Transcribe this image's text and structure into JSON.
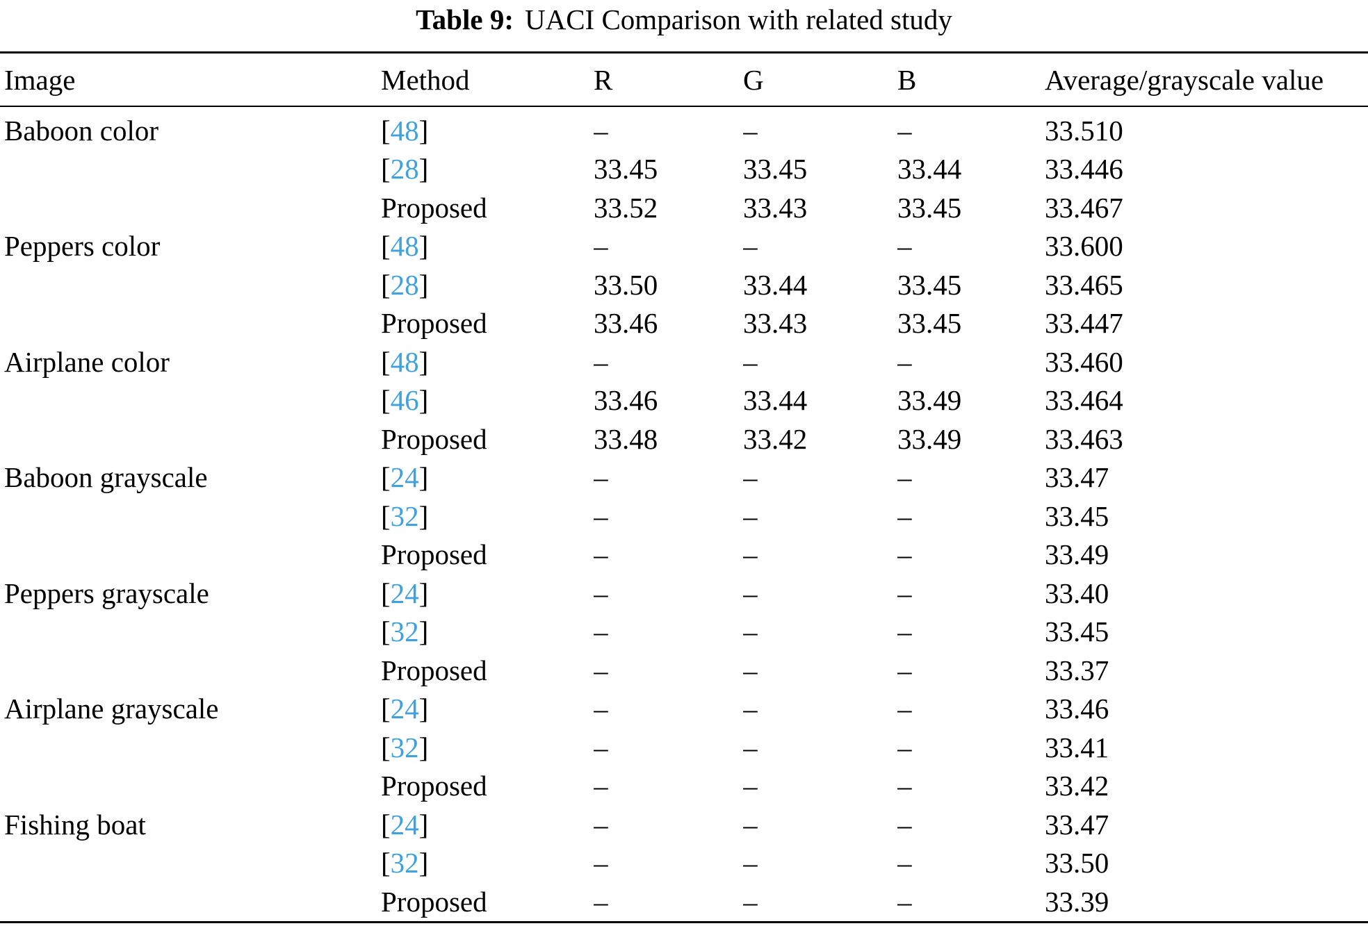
{
  "caption": {
    "label": "Table 9:",
    "text": "UACI Comparison with related study"
  },
  "columns": [
    "Image",
    "Method",
    "R",
    "G",
    "B",
    "Average/grayscale value"
  ],
  "colors": {
    "citation": "#3fa2dc",
    "text": "#000000",
    "rule": "#000000"
  },
  "dash": "–",
  "rows": [
    {
      "image": "Baboon color",
      "method": {
        "ref": "48"
      },
      "r": "–",
      "g": "–",
      "b": "–",
      "avg": "33.510"
    },
    {
      "image": "",
      "method": {
        "ref": "28"
      },
      "r": "33.45",
      "g": "33.45",
      "b": "33.44",
      "avg": "33.446"
    },
    {
      "image": "",
      "method": {
        "label": "Proposed"
      },
      "r": "33.52",
      "g": "33.43",
      "b": "33.45",
      "avg": "33.467"
    },
    {
      "image": "Peppers color",
      "method": {
        "ref": "48"
      },
      "r": "–",
      "g": "–",
      "b": "–",
      "avg": "33.600"
    },
    {
      "image": "",
      "method": {
        "ref": "28"
      },
      "r": "33.50",
      "g": "33.44",
      "b": "33.45",
      "avg": "33.465"
    },
    {
      "image": "",
      "method": {
        "label": "Proposed"
      },
      "r": "33.46",
      "g": "33.43",
      "b": "33.45",
      "avg": "33.447"
    },
    {
      "image": "Airplane color",
      "method": {
        "ref": "48"
      },
      "r": "–",
      "g": "–",
      "b": "–",
      "avg": "33.460"
    },
    {
      "image": "",
      "method": {
        "ref": "46"
      },
      "r": "33.46",
      "g": "33.44",
      "b": "33.49",
      "avg": "33.464"
    },
    {
      "image": "",
      "method": {
        "label": "Proposed"
      },
      "r": "33.48",
      "g": "33.42",
      "b": "33.49",
      "avg": "33.463"
    },
    {
      "image": "Baboon grayscale",
      "method": {
        "ref": "24"
      },
      "r": "–",
      "g": "–",
      "b": "–",
      "avg": "33.47"
    },
    {
      "image": "",
      "method": {
        "ref": "32"
      },
      "r": "–",
      "g": "–",
      "b": "–",
      "avg": "33.45"
    },
    {
      "image": "",
      "method": {
        "label": "Proposed"
      },
      "r": "–",
      "g": "–",
      "b": "–",
      "avg": "33.49"
    },
    {
      "image": "Peppers grayscale",
      "method": {
        "ref": "24"
      },
      "r": "–",
      "g": "–",
      "b": "–",
      "avg": "33.40"
    },
    {
      "image": "",
      "method": {
        "ref": "32"
      },
      "r": "–",
      "g": "–",
      "b": "–",
      "avg": "33.45"
    },
    {
      "image": "",
      "method": {
        "label": "Proposed"
      },
      "r": "–",
      "g": "–",
      "b": "–",
      "avg": "33.37"
    },
    {
      "image": "Airplane grayscale",
      "method": {
        "ref": "24"
      },
      "r": "–",
      "g": "–",
      "b": "–",
      "avg": "33.46"
    },
    {
      "image": "",
      "method": {
        "ref": "32"
      },
      "r": "–",
      "g": "–",
      "b": "–",
      "avg": "33.41"
    },
    {
      "image": "",
      "method": {
        "label": "Proposed"
      },
      "r": "–",
      "g": "–",
      "b": "–",
      "avg": "33.42"
    },
    {
      "image": "Fishing boat",
      "method": {
        "ref": "24"
      },
      "r": "–",
      "g": "–",
      "b": "–",
      "avg": "33.47"
    },
    {
      "image": "",
      "method": {
        "ref": "32"
      },
      "r": "–",
      "g": "–",
      "b": "–",
      "avg": "33.50"
    },
    {
      "image": "",
      "method": {
        "label": "Proposed"
      },
      "r": "–",
      "g": "–",
      "b": "–",
      "avg": "33.39"
    }
  ]
}
